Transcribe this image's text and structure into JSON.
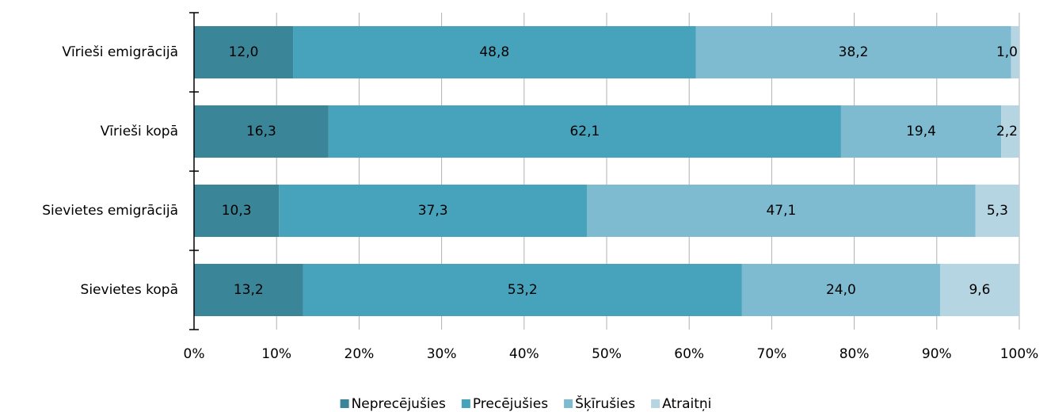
{
  "chart_data": {
    "type": "stacked-bar-horizontal",
    "categories": [
      "Vīrieši emigrācijā",
      "Vīrieši kopā",
      "Sievietes emigrācijā",
      "Sievietes kopā"
    ],
    "series": [
      {
        "name": "Neprecējušies",
        "color": "#3a8597",
        "values": [
          12.0,
          16.3,
          10.3,
          13.2
        ],
        "value_labels": [
          "12,0",
          "16,3",
          "10,3",
          "13,2"
        ]
      },
      {
        "name": "Precējušies",
        "color": "#47a3bb",
        "values": [
          48.8,
          62.1,
          37.3,
          53.2
        ],
        "value_labels": [
          "48,8",
          "62,1",
          "37,3",
          "53,2"
        ]
      },
      {
        "name": "Šķīrušies",
        "color": "#7ebbd0",
        "values": [
          38.2,
          19.4,
          47.1,
          24.0
        ],
        "value_labels": [
          "38,2",
          "19,4",
          "47,1",
          "24,0"
        ]
      },
      {
        "name": "Atraitņi",
        "color": "#b4d5e1",
        "values": [
          1.0,
          2.2,
          5.3,
          9.6
        ],
        "value_labels": [
          "1,0",
          "2,2",
          "5,3",
          "9,6"
        ]
      }
    ],
    "xlim": [
      0,
      100
    ],
    "xticks": [
      {
        "value": 0,
        "label": "0%"
      },
      {
        "value": 10,
        "label": "10%"
      },
      {
        "value": 20,
        "label": "20%"
      },
      {
        "value": 30,
        "label": "30%"
      },
      {
        "value": 40,
        "label": "40%"
      },
      {
        "value": 50,
        "label": "50%"
      },
      {
        "value": 60,
        "label": "60%"
      },
      {
        "value": 70,
        "label": "70%"
      },
      {
        "value": 80,
        "label": "80%"
      },
      {
        "value": 90,
        "label": "90%"
      },
      {
        "value": 100,
        "label": "100%"
      }
    ],
    "grid": true,
    "legend": "bottom"
  }
}
